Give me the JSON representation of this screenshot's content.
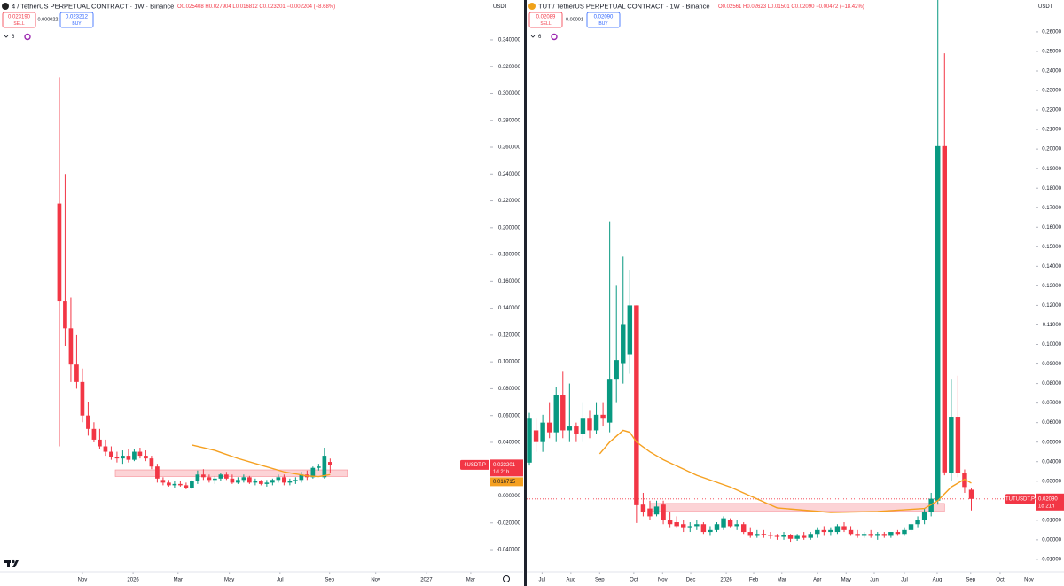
{
  "chart_data": [
    {
      "type": "candlestick",
      "title": "4 / TetherUS PERPETUAL CONTRACT · 1W · Binance",
      "ohlc": "O0.025408 H0.027904 L0.016812 C0.023201 −0.002204 (−8.68%)",
      "sell_price": "0.023190",
      "sell_label": "SELL",
      "spread": "0.000022",
      "buy_price": "0.023212",
      "buy_label": "BUY",
      "indicators": "6",
      "currency": "USDT",
      "up_color": "#089981",
      "down_color": "#f23645",
      "logo_color": "#222222",
      "xlim": [
        -10.3,
        74.8
      ],
      "xticks": [
        {
          "value": 4,
          "label": "Nov"
        },
        {
          "value": 12.8,
          "label": "2026"
        },
        {
          "value": 20.6,
          "label": "Mar"
        },
        {
          "value": 29.5,
          "label": "May"
        },
        {
          "value": 38.3,
          "label": "Jul"
        },
        {
          "value": 46.9,
          "label": "Sep"
        },
        {
          "value": 54.9,
          "label": "Nov"
        },
        {
          "value": 63.7,
          "label": "2027"
        },
        {
          "value": 71.4,
          "label": "Mar"
        }
      ],
      "ylim": [
        -0.0565,
        0.3697
      ],
      "yticks": [
        {
          "value": 0.34,
          "label": "0.340000"
        },
        {
          "value": 0.32,
          "label": "0.320000"
        },
        {
          "value": 0.3,
          "label": "0.300000"
        },
        {
          "value": 0.28,
          "label": "0.280000"
        },
        {
          "value": 0.26,
          "label": "0.260000"
        },
        {
          "value": 0.24,
          "label": "0.240000"
        },
        {
          "value": 0.22,
          "label": "0.220000"
        },
        {
          "value": 0.2,
          "label": "0.200000"
        },
        {
          "value": 0.18,
          "label": "0.180000"
        },
        {
          "value": 0.16,
          "label": "0.160000"
        },
        {
          "value": 0.14,
          "label": "0.140000"
        },
        {
          "value": 0.12,
          "label": "0.120000"
        },
        {
          "value": 0.1,
          "label": "0.100000"
        },
        {
          "value": 0.08,
          "label": "0.080000"
        },
        {
          "value": 0.06,
          "label": "0.060000"
        },
        {
          "value": 0.04,
          "label": "0.040000"
        },
        {
          "value": 0,
          "label": "-0.000000"
        },
        {
          "value": -0.02,
          "label": "-0.020000"
        },
        {
          "value": -0.04,
          "label": "-0.040000"
        }
      ],
      "candles": {
        "x": [
          0,
          1,
          2,
          3,
          4,
          5,
          6,
          7,
          8,
          9,
          10,
          11,
          12,
          13,
          14,
          15,
          16,
          17,
          18,
          19,
          20,
          21,
          22,
          23,
          24,
          25,
          26,
          27,
          28,
          29,
          30,
          31,
          32,
          33,
          34,
          35,
          36,
          37,
          38,
          39,
          40,
          41,
          42,
          43,
          44,
          45,
          46,
          47
        ],
        "open": [
          0.218,
          0.145,
          0.125,
          0.098,
          0.085,
          0.06,
          0.05,
          0.042,
          0.037,
          0.033,
          0.029,
          0.028,
          0.03,
          0.027,
          0.033,
          0.03,
          0.028,
          0.022,
          0.012,
          0.01,
          0.008,
          0.009,
          0.008,
          0.006,
          0.011,
          0.016,
          0.014,
          0.012,
          0.013,
          0.016,
          0.013,
          0.01,
          0.012,
          0.014,
          0.01,
          0.011,
          0.009,
          0.01,
          0.012,
          0.014,
          0.01,
          0.011,
          0.012,
          0.016,
          0.014,
          0.021,
          0.014,
          0.025408
        ],
        "high": [
          0.312,
          0.24,
          0.148,
          0.12,
          0.095,
          0.07,
          0.055,
          0.05,
          0.042,
          0.037,
          0.033,
          0.034,
          0.035,
          0.035,
          0.036,
          0.034,
          0.03,
          0.024,
          0.014,
          0.012,
          0.011,
          0.011,
          0.01,
          0.012,
          0.019,
          0.02,
          0.016,
          0.015,
          0.017,
          0.018,
          0.016,
          0.014,
          0.016,
          0.015,
          0.013,
          0.012,
          0.012,
          0.013,
          0.016,
          0.016,
          0.013,
          0.014,
          0.018,
          0.019,
          0.022,
          0.024,
          0.036,
          0.027904
        ],
        "low": [
          0.037,
          0.112,
          0.085,
          0.08,
          0.055,
          0.045,
          0.04,
          0.035,
          0.03,
          0.027,
          0.025,
          0.024,
          0.025,
          0.026,
          0.028,
          0.026,
          0.02,
          0.01,
          0.008,
          0.007,
          0.006,
          0.007,
          0.005,
          0.005,
          0.009,
          0.012,
          0.01,
          0.009,
          0.011,
          0.012,
          0.009,
          0.009,
          0.01,
          0.009,
          0.008,
          0.008,
          0.007,
          0.008,
          0.01,
          0.008,
          0.008,
          0.009,
          0.01,
          0.012,
          0.013,
          0.019,
          0.013,
          0.016812
        ],
        "close": [
          0.145,
          0.125,
          0.098,
          0.085,
          0.06,
          0.05,
          0.042,
          0.037,
          0.033,
          0.029,
          0.028,
          0.03,
          0.027,
          0.033,
          0.03,
          0.028,
          0.022,
          0.013,
          0.01,
          0.008,
          0.009,
          0.008,
          0.006,
          0.011,
          0.016,
          0.014,
          0.012,
          0.013,
          0.016,
          0.013,
          0.01,
          0.012,
          0.014,
          0.01,
          0.011,
          0.009,
          0.01,
          0.012,
          0.014,
          0.01,
          0.011,
          0.012,
          0.016,
          0.014,
          0.021,
          0.022,
          0.03,
          0.023201
        ]
      },
      "ma": {
        "color": "#f5a020",
        "x": [
          23,
          27,
          31,
          35,
          39,
          43,
          45,
          47
        ],
        "values": [
          0.038,
          0.034,
          0.028,
          0.023,
          0.018,
          0.015,
          0.0145,
          0.016
        ]
      },
      "zone": {
        "color": "#f23645",
        "xlim": [
          9.7,
          50
        ],
        "ylim": [
          0.0145,
          0.0195
        ]
      },
      "symbol": "4USDT.P",
      "last_price": {
        "value": 0.023201,
        "label": "0.023201"
      },
      "countdown": "1d 21h",
      "ma_price": {
        "value": 0.016715,
        "label": "0.016715"
      }
    },
    {
      "type": "candlestick",
      "title": "TUT / TetherUS PERPETUAL CONTRACT · 1W · Binance",
      "ohlc": "O0.02561 H0.02623 L0.01501 C0.02090 −0.00472 (−18.42%)",
      "sell_price": "0.02089",
      "sell_label": "SELL",
      "spread": "0.00001",
      "buy_price": "0.02090",
      "buy_label": "BUY",
      "indicators": "6",
      "currency": "USDT",
      "up_color": "#089981",
      "down_color": "#f23645",
      "logo_color": "#f0a21a",
      "xlim": [
        -0.4,
        75.6
      ],
      "xticks": [
        {
          "value": 1.9,
          "label": "Jul"
        },
        {
          "value": 6.2,
          "label": "Aug"
        },
        {
          "value": 10.5,
          "label": "Sep"
        },
        {
          "value": 15.6,
          "label": "Oct"
        },
        {
          "value": 19.9,
          "label": "Nov"
        },
        {
          "value": 24.1,
          "label": "Dec"
        },
        {
          "value": 29.4,
          "label": "2026"
        },
        {
          "value": 33.5,
          "label": "Feb"
        },
        {
          "value": 37.7,
          "label": "Mar"
        },
        {
          "value": 43.0,
          "label": "Apr"
        },
        {
          "value": 47.3,
          "label": "May"
        },
        {
          "value": 51.5,
          "label": "Jun"
        },
        {
          "value": 56.0,
          "label": "Jul"
        },
        {
          "value": 60.9,
          "label": "Aug"
        },
        {
          "value": 65.9,
          "label": "Sep"
        },
        {
          "value": 70.3,
          "label": "Oct"
        },
        {
          "value": 74.6,
          "label": "Nov"
        }
      ],
      "ylim": [
        -0.0164,
        0.2763
      ],
      "yticks": [
        {
          "value": 0.26,
          "label": "0.26000"
        },
        {
          "value": 0.25,
          "label": "0.25000"
        },
        {
          "value": 0.24,
          "label": "0.24000"
        },
        {
          "value": 0.23,
          "label": "0.23000"
        },
        {
          "value": 0.22,
          "label": "0.22000"
        },
        {
          "value": 0.21,
          "label": "0.21000"
        },
        {
          "value": 0.2,
          "label": "0.20000"
        },
        {
          "value": 0.19,
          "label": "0.19000"
        },
        {
          "value": 0.18,
          "label": "0.18000"
        },
        {
          "value": 0.17,
          "label": "0.17000"
        },
        {
          "value": 0.16,
          "label": "0.16000"
        },
        {
          "value": 0.15,
          "label": "0.15000"
        },
        {
          "value": 0.14,
          "label": "0.14000"
        },
        {
          "value": 0.13,
          "label": "0.13000"
        },
        {
          "value": 0.12,
          "label": "0.12000"
        },
        {
          "value": 0.11,
          "label": "0.11000"
        },
        {
          "value": 0.1,
          "label": "0.10000"
        },
        {
          "value": 0.09,
          "label": "0.09000"
        },
        {
          "value": 0.08,
          "label": "0.08000"
        },
        {
          "value": 0.07,
          "label": "0.07000"
        },
        {
          "value": 0.06,
          "label": "0.06000"
        },
        {
          "value": 0.05,
          "label": "0.05000"
        },
        {
          "value": 0.04,
          "label": "0.04000"
        },
        {
          "value": 0.03,
          "label": "0.03000"
        },
        {
          "value": 0.01,
          "label": "0.01000"
        },
        {
          "value": 0,
          "label": "0.00000"
        },
        {
          "value": -0.01,
          "label": "-0.01000"
        }
      ],
      "candles": {
        "x": [
          0,
          1,
          2,
          3,
          4,
          5,
          6,
          7,
          8,
          9,
          10,
          11,
          12,
          13,
          14,
          15,
          16,
          17,
          18,
          19,
          20,
          21,
          22,
          23,
          24,
          25,
          26,
          27,
          28,
          29,
          30,
          31,
          32,
          33,
          34,
          35,
          36,
          37,
          38,
          39,
          40,
          41,
          42,
          43,
          44,
          45,
          46,
          47,
          48,
          49,
          50,
          51,
          52,
          53,
          54,
          55,
          56,
          57,
          58,
          59,
          60,
          61,
          62,
          63,
          64,
          65,
          66
        ],
        "open": [
          0.0395,
          0.056,
          0.05,
          0.06,
          0.055,
          0.074,
          0.056,
          0.058,
          0.054,
          0.062,
          0.056,
          0.064,
          0.06,
          0.082,
          0.09,
          0.095,
          0.12,
          0.018,
          0.016,
          0.013,
          0.018,
          0.01,
          0.009,
          0.008,
          0.006,
          0.007,
          0.008,
          0.004,
          0.005,
          0.006,
          0.01,
          0.007,
          0.008,
          0.004,
          0.002,
          0.003,
          0.0025,
          0.002,
          0.0015,
          0.0025,
          0.0005,
          0.002,
          0.001,
          0.003,
          0.005,
          0.004,
          0.004,
          0.007,
          0.005,
          0.003,
          0.002,
          0.003,
          0.002,
          0.003,
          0.002,
          0.004,
          0.003,
          0.005,
          0.008,
          0.01,
          0.014,
          0.02,
          0.2015,
          0.034,
          0.063,
          0.034,
          0.02561
        ],
        "high": [
          0.065,
          0.062,
          0.064,
          0.07,
          0.078,
          0.086,
          0.08,
          0.06,
          0.07,
          0.066,
          0.07,
          0.07,
          0.163,
          0.13,
          0.145,
          0.138,
          0.12,
          0.024,
          0.02,
          0.02,
          0.02,
          0.014,
          0.012,
          0.01,
          0.009,
          0.01,
          0.009,
          0.007,
          0.009,
          0.012,
          0.011,
          0.01,
          0.009,
          0.006,
          0.005,
          0.005,
          0.004,
          0.003,
          0.004,
          0.003,
          0.003,
          0.004,
          0.004,
          0.006,
          0.007,
          0.006,
          0.008,
          0.009,
          0.007,
          0.005,
          0.004,
          0.005,
          0.004,
          0.004,
          0.004,
          0.005,
          0.006,
          0.009,
          0.012,
          0.016,
          0.024,
          0.28,
          0.249,
          0.082,
          0.084,
          0.036,
          0.02623
        ],
        "low": [
          0.038,
          0.045,
          0.045,
          0.052,
          0.05,
          0.052,
          0.05,
          0.05,
          0.05,
          0.052,
          0.054,
          0.058,
          0.055,
          0.07,
          0.08,
          0.085,
          0.0086,
          0.012,
          0.01,
          0.012,
          0.008,
          0.006,
          0.006,
          0.004,
          0.004,
          0.005,
          0.003,
          0.002,
          0.004,
          0.005,
          0.006,
          0.005,
          0.003,
          0.001,
          0.001,
          0.001,
          0.0005,
          0,
          0,
          -0.001,
          -0.0005,
          0,
          0,
          0.001,
          0.002,
          0.002,
          0.003,
          0.004,
          0.002,
          0.001,
          0.001,
          0.001,
          0,
          0.001,
          0.001,
          0.002,
          0.002,
          0.004,
          0.006,
          0.008,
          0.012,
          0.018,
          0.033,
          0.03,
          0.032,
          0.024,
          0.01501
        ],
        "close": [
          0.062,
          0.05,
          0.06,
          0.055,
          0.074,
          0.056,
          0.058,
          0.054,
          0.062,
          0.056,
          0.064,
          0.062,
          0.082,
          0.092,
          0.11,
          0.12,
          0.0177,
          0.014,
          0.012,
          0.017,
          0.01,
          0.008,
          0.007,
          0.006,
          0.007,
          0.008,
          0.004,
          0.005,
          0.008,
          0.011,
          0.007,
          0.008,
          0.004,
          0.002,
          0.003,
          0.0025,
          0.002,
          0.0015,
          0.0025,
          0.0005,
          0.002,
          0.001,
          0.003,
          0.005,
          0.004,
          0.005,
          0.007,
          0.005,
          0.003,
          0.002,
          0.003,
          0.002,
          0.003,
          0.002,
          0.004,
          0.003,
          0.005,
          0.008,
          0.01,
          0.014,
          0.021,
          0.2015,
          0.0345,
          0.063,
          0.034,
          0.027,
          0.0209
        ]
      },
      "ma": {
        "color": "#f5a020",
        "x": [
          10.5,
          12,
          14,
          15,
          16,
          18,
          20,
          25,
          30,
          37,
          45,
          52,
          59,
          61,
          63,
          65,
          66
        ],
        "values": [
          0.044,
          0.05,
          0.056,
          0.055,
          0.05,
          0.045,
          0.041,
          0.033,
          0.027,
          0.0163,
          0.014,
          0.0145,
          0.016,
          0.02,
          0.027,
          0.031,
          0.029
        ]
      },
      "zone": {
        "color": "#f23645",
        "xlim": [
          18,
          62
        ],
        "ylim": [
          0.0145,
          0.0186
        ]
      },
      "symbol": "TUTUSDT.P",
      "last_price": {
        "value": 0.0209,
        "label": "0.02090"
      },
      "countdown": "1d 21h"
    }
  ]
}
